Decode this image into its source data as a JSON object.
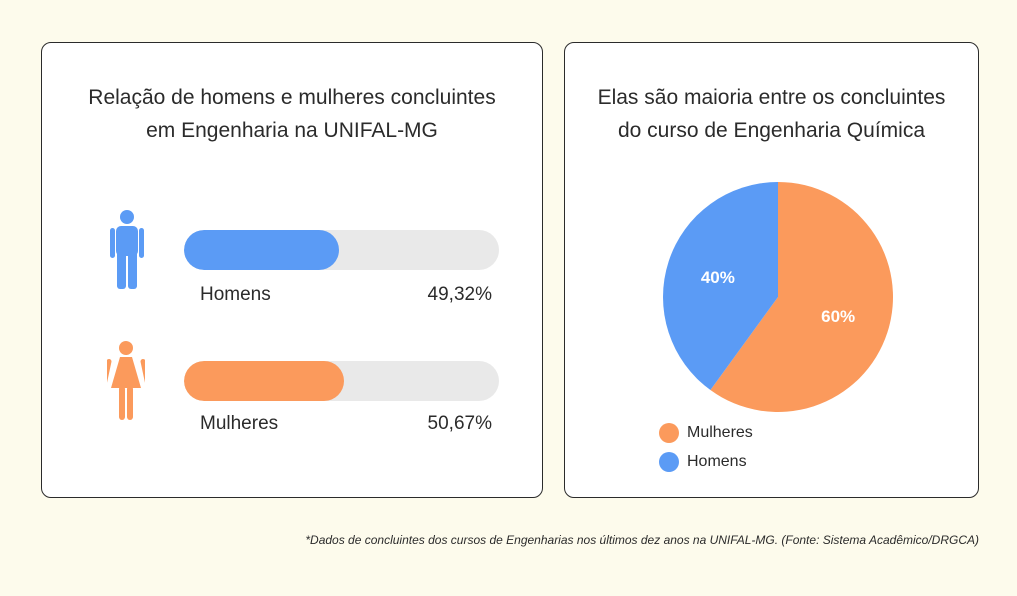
{
  "colors": {
    "men": "#5b9bf5",
    "women": "#fb9a5c",
    "track": "#e9e9e9"
  },
  "left_panel": {
    "title": "Relação de homens e mulheres concluintes\nem Engenharia na UNIFAL-MG"
  },
  "right_panel": {
    "title": "Elas são maioria entre os concluintes\ndo curso de Engenharia Química"
  },
  "chart_data": [
    {
      "type": "bar",
      "title": "Relação de homens e mulheres concluintes em Engenharia na UNIFAL-MG",
      "orientation": "horizontal",
      "xlim": [
        0,
        100
      ],
      "categories": [
        "Homens",
        "Mulheres"
      ],
      "values": [
        49.32,
        50.67
      ],
      "value_labels": [
        "49,32%",
        "50,67%"
      ],
      "icons": [
        "man-icon",
        "woman-icon"
      ],
      "colors": [
        "#5b9bf5",
        "#fb9a5c"
      ]
    },
    {
      "type": "pie",
      "title": "Elas são maioria entre os concluintes do curso de Engenharia Química",
      "categories": [
        "Mulheres",
        "Homens"
      ],
      "values": [
        60,
        40
      ],
      "value_labels": [
        "60%",
        "40%"
      ],
      "colors": [
        "#fb9a5c",
        "#5b9bf5"
      ],
      "legend": {
        "placement": "bottom-left",
        "entries": [
          "Mulheres",
          "Homens"
        ]
      }
    }
  ],
  "footnote": "*Dados de concluintes dos cursos de Engenharias nos últimos dez anos na UNIFAL-MG. (Fonte: Sistema Acadêmico/DRGCA)"
}
